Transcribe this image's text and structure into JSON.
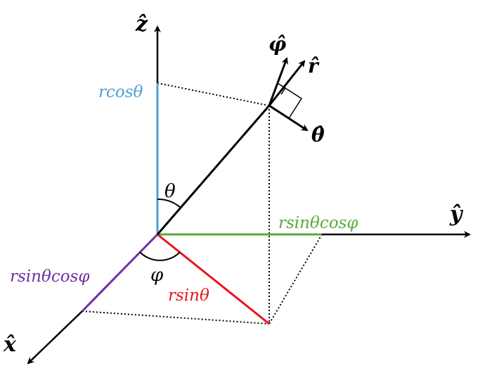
{
  "axes": {
    "z": {
      "label": "ẑ"
    },
    "y": {
      "label": "ŷ"
    },
    "x": {
      "label": "x̂"
    }
  },
  "unit_vectors": {
    "r": "r̂",
    "theta": "θ̂",
    "phi": "φ̂"
  },
  "angles": {
    "theta": "θ",
    "phi": "φ"
  },
  "components": {
    "z": "rcosθ",
    "y": "rsinθcosφ",
    "x": "rsinθcosφ",
    "rho": "rsinθ"
  },
  "colors": {
    "axis": "#000000",
    "z_component": "#4e9fd6",
    "y_component": "#5aaa37",
    "x_component": "#7030a0",
    "rho_component": "#e8151b"
  }
}
